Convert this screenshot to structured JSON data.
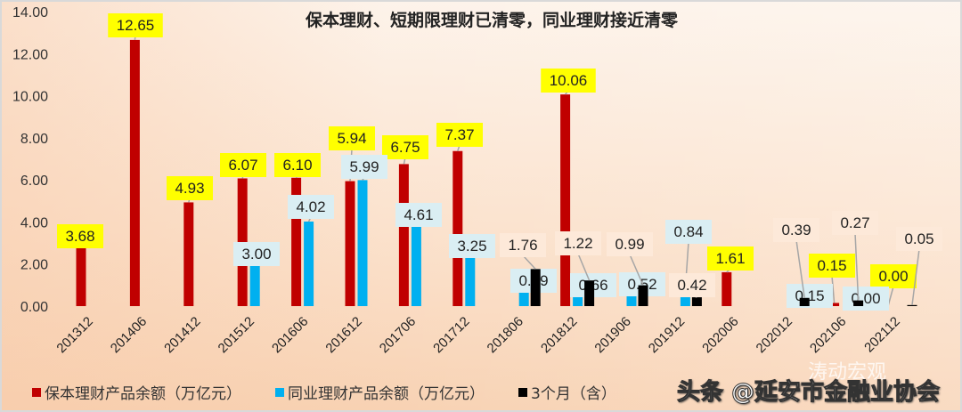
{
  "chart_data": {
    "type": "bar",
    "title": "保本理财、短期限理财已清零，同业理财接近清零",
    "categories": [
      "201312",
      "201406",
      "201412",
      "201512",
      "201606",
      "201612",
      "201706",
      "201712",
      "201806",
      "201812",
      "201906",
      "201912",
      "202006",
      "202012",
      "202106",
      "202112"
    ],
    "ylim": [
      0,
      14
    ],
    "yticks": [
      "0.00",
      "2.00",
      "4.00",
      "6.00",
      "8.00",
      "10.00",
      "12.00",
      "14.00"
    ],
    "grid": false,
    "legend_position": "bottom",
    "series": [
      {
        "name": "保本理财产品余额（万亿元）",
        "color": "#c00000",
        "label_bg": "#ffff00",
        "values": [
          3.68,
          12.65,
          4.93,
          6.07,
          6.1,
          5.94,
          6.75,
          7.37,
          null,
          10.06,
          null,
          null,
          1.61,
          null,
          0.15,
          0.0
        ]
      },
      {
        "name": "同业理财产品余额（万亿元）",
        "color": "#00b0f0",
        "label_bg": "#daeef3",
        "values": [
          null,
          null,
          null,
          3.0,
          4.02,
          5.99,
          4.61,
          3.25,
          0.89,
          0.66,
          0.52,
          0.84,
          null,
          0.15,
          0.0,
          null
        ]
      },
      {
        "name": "3个月（含）",
        "color": "#000000",
        "label_bg": "#fde9d9",
        "values": [
          null,
          null,
          null,
          null,
          null,
          null,
          null,
          null,
          1.76,
          1.22,
          0.99,
          0.42,
          null,
          0.39,
          0.27,
          0.05
        ]
      }
    ]
  },
  "watermark": {
    "account": "涛动宏观",
    "source": "头条 @延安市金融业协会"
  }
}
